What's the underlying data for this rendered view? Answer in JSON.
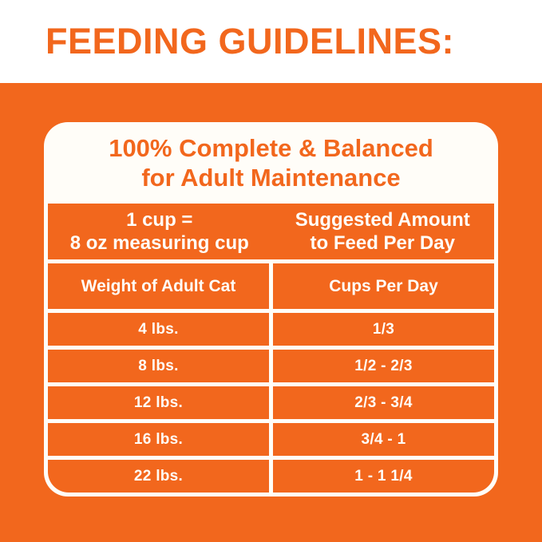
{
  "page": {
    "title": "FEEDING GUIDELINES:"
  },
  "colors": {
    "orange": "#F2671D",
    "card_white": "#FFFDF8"
  },
  "card": {
    "heading_line1": "100% Complete & Balanced",
    "heading_line2": "for Adult Maintenance",
    "info_row": {
      "left_line1": "1 cup =",
      "left_line2": "8 oz measuring cup",
      "right_line1": "Suggested Amount",
      "right_line2": "to Feed Per Day"
    },
    "columns": [
      "Weight of Adult Cat",
      "Cups Per Day"
    ],
    "rows": [
      {
        "weight": "4 lbs.",
        "cups": "1/3"
      },
      {
        "weight": "8 lbs.",
        "cups": "1/2 - 2/3"
      },
      {
        "weight": "12 lbs.",
        "cups": "2/3 - 3/4"
      },
      {
        "weight": "16 lbs.",
        "cups": "3/4 - 1"
      },
      {
        "weight": "22 lbs.",
        "cups": "1 - 1 1/4"
      }
    ]
  }
}
